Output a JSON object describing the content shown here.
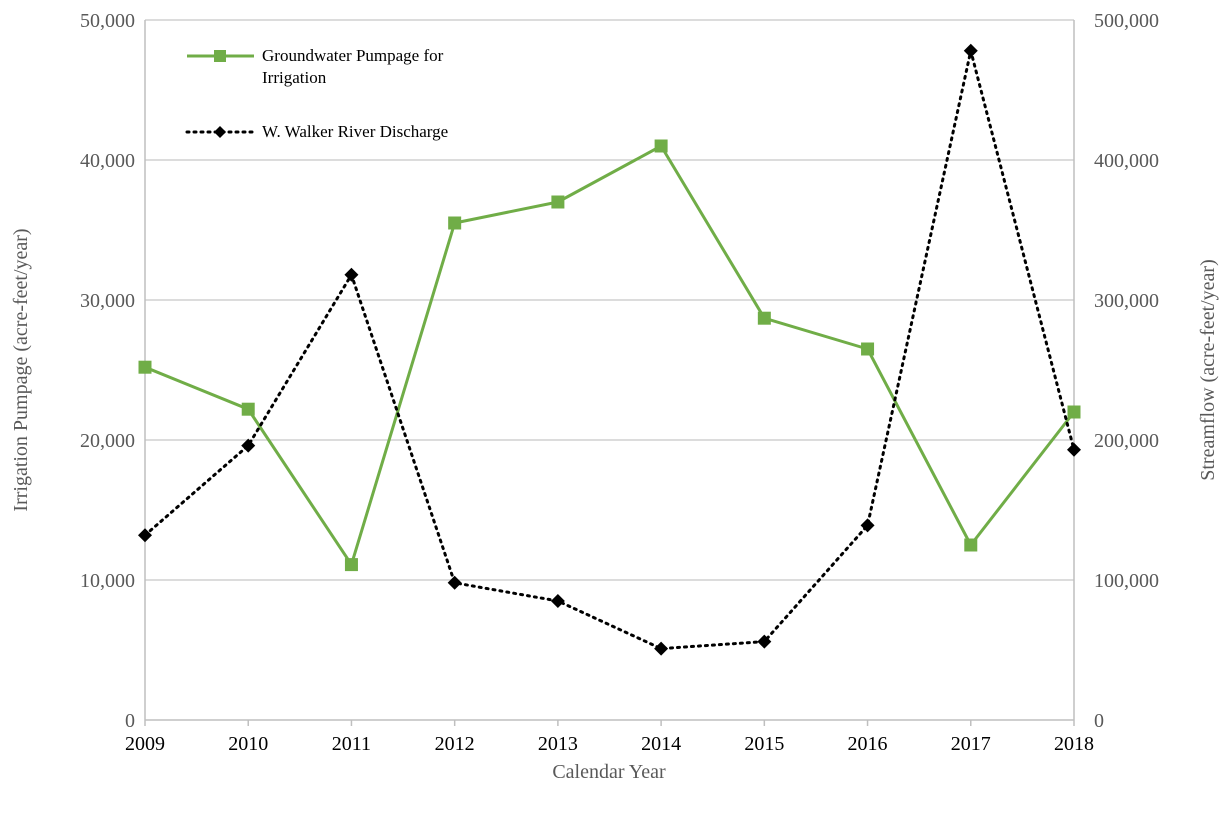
{
  "chart_data": {
    "type": "line",
    "categories": [
      "2009",
      "2010",
      "2011",
      "2012",
      "2013",
      "2014",
      "2015",
      "2016",
      "2017",
      "2018"
    ],
    "series": [
      {
        "name_lines": [
          "Groundwater Pumpage for",
          "Irrigation"
        ],
        "axis": "left",
        "color": "#70ad47",
        "line_style": "solid",
        "marker": "square",
        "values": [
          25200,
          22200,
          11100,
          35500,
          37000,
          41000,
          28700,
          26500,
          12500,
          22000
        ]
      },
      {
        "name_lines": [
          "W. Walker River Discharge"
        ],
        "axis": "right",
        "color": "#000000",
        "line_style": "dotted",
        "marker": "diamond",
        "values": [
          132000,
          196000,
          318000,
          98000,
          85000,
          51000,
          56000,
          139000,
          478000,
          193000
        ]
      }
    ],
    "xlabel": "Calendar Year",
    "ylabel_left": "Irrigation Pumpage (acre-feet/year)",
    "ylabel_right": "Streamflow (acre-feet/year)",
    "ylim_left": [
      0,
      50000
    ],
    "ylim_right": [
      0,
      500000
    ],
    "yticks_left": [
      "0",
      "10,000",
      "20,000",
      "30,000",
      "40,000",
      "50,000"
    ],
    "yticks_right": [
      "0",
      "100,000",
      "200,000",
      "300,000",
      "400,000",
      "500,000"
    ],
    "grid": true,
    "legend_position": "top-left"
  }
}
